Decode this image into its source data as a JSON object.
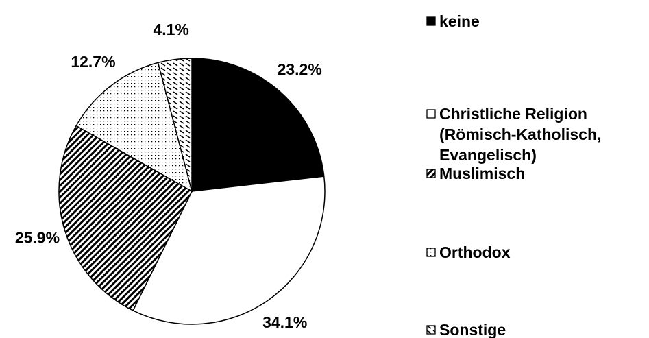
{
  "chart_data": {
    "type": "pie",
    "categories": [
      "keine",
      "Christliche Religion (Römisch-Katholisch, Evangelisch)",
      "Muslimisch",
      "Orthodox",
      "Sonstige"
    ],
    "values": [
      23.2,
      34.1,
      25.9,
      12.7,
      4.1
    ],
    "value_labels": [
      "23.2%",
      "34.1%",
      "25.9%",
      "12.7%",
      "4.1%"
    ]
  }
}
